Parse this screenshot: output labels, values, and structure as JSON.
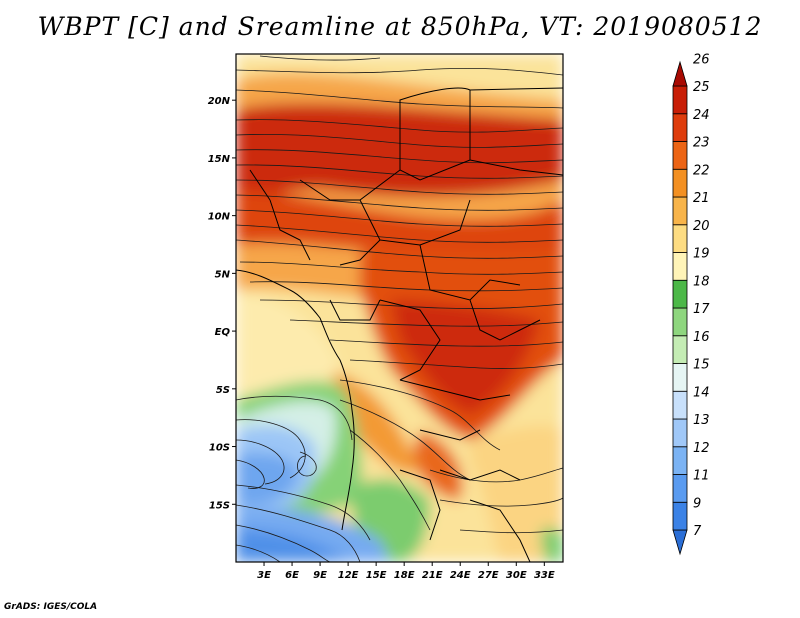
{
  "title": "WBPT [C] and Sreamline at 850hPa, VT: 2019080512",
  "credit": "GrADS: IGES/COLA",
  "map": {
    "lon_range": [
      0,
      35
    ],
    "lat_range": [
      -20,
      24
    ],
    "lon_ticks": [
      "3E",
      "6E",
      "9E",
      "12E",
      "15E",
      "18E",
      "21E",
      "24E",
      "27E",
      "30E",
      "33E"
    ],
    "lat_ticks": [
      "20N",
      "15N",
      "10N",
      "5N",
      "EQ",
      "5S",
      "10S",
      "15S"
    ]
  },
  "colorbar": {
    "labels": [
      "7",
      "9",
      "11",
      "12",
      "13",
      "14",
      "15",
      "16",
      "17",
      "18",
      "19",
      "20",
      "21",
      "22",
      "23",
      "24",
      "25",
      "26"
    ],
    "colors": [
      "#2a6ed6",
      "#3b82e6",
      "#5a9bf0",
      "#7bb3f4",
      "#a0c8f8",
      "#c8e0fb",
      "#e6f5f4",
      "#c4ecb4",
      "#8ed67e",
      "#4cb848",
      "#fff4b8",
      "#fddc82",
      "#f8b44a",
      "#f39022",
      "#ec6414",
      "#de3c0c",
      "#c81e06",
      "#a80a02"
    ]
  }
}
